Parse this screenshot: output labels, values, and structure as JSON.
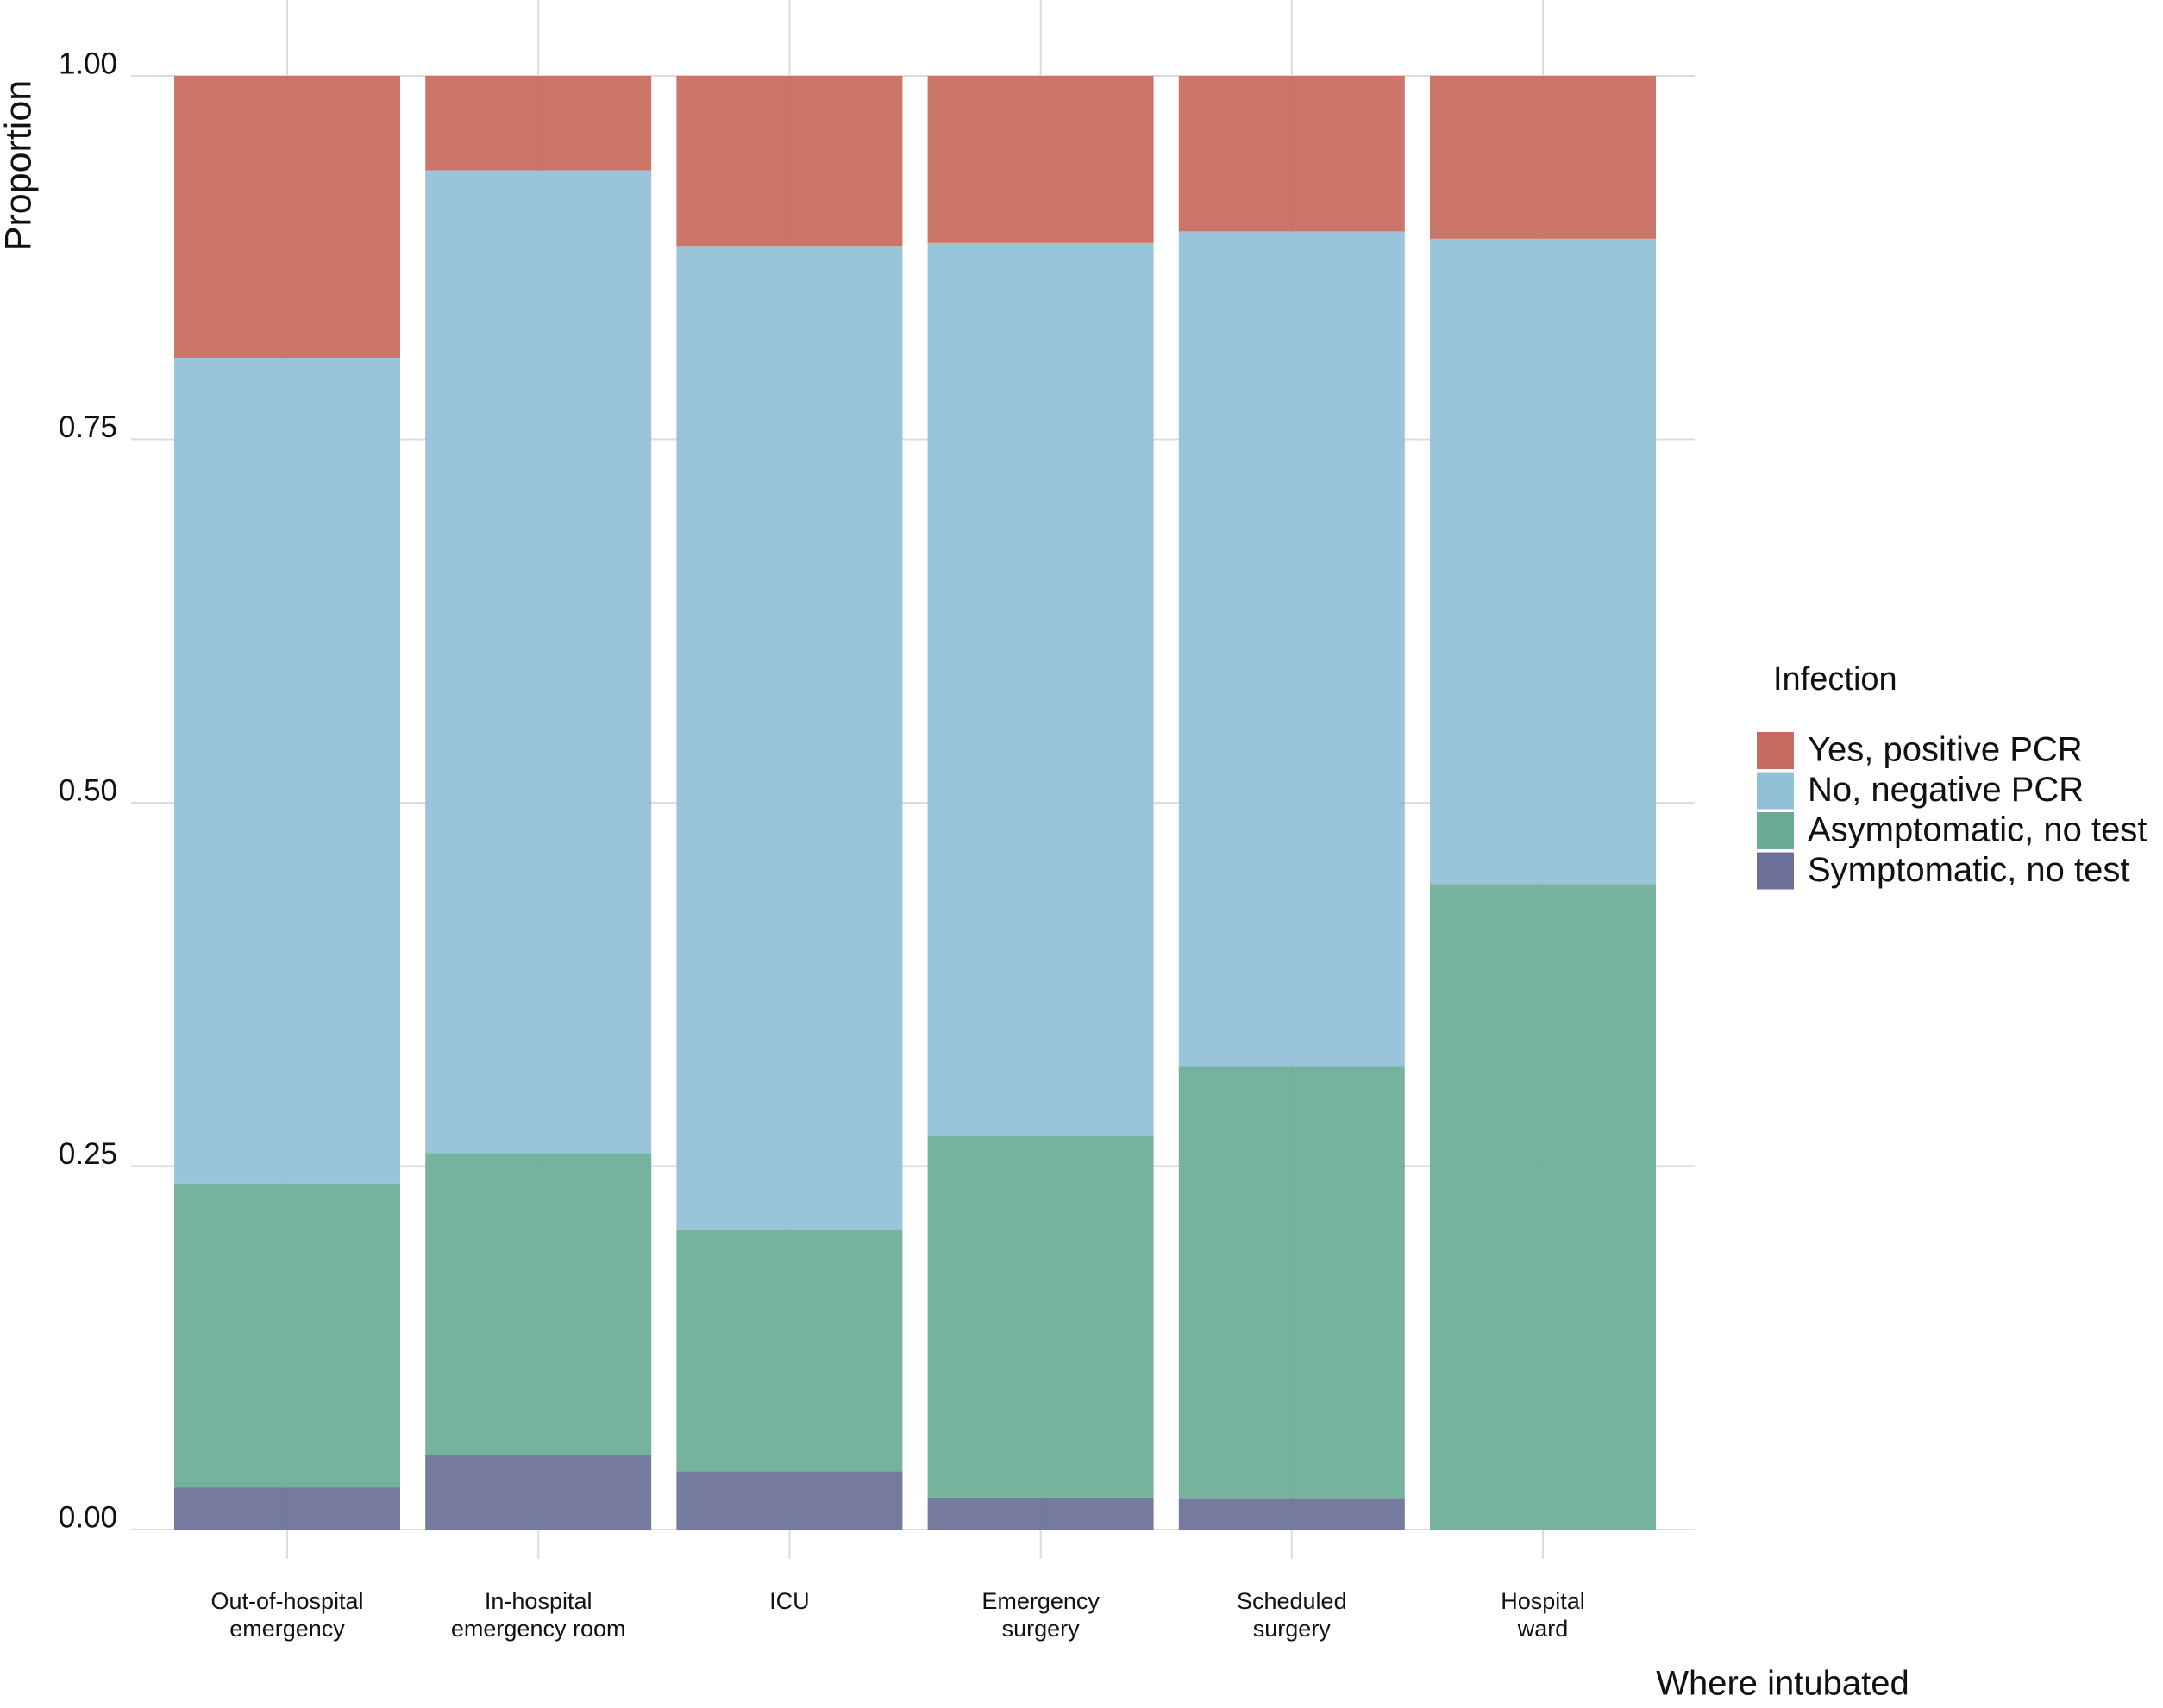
{
  "chart_data": {
    "type": "stacked_bar",
    "xlabel": "Where intubated",
    "ylabel": "Proportion",
    "legend_title": "Infection",
    "categories": [
      [
        "Out-of-hospital",
        "emergency"
      ],
      [
        "In-hospital",
        "emergency room"
      ],
      [
        "ICU"
      ],
      [
        "Emergency",
        "surgery"
      ],
      [
        "Scheduled",
        "surgery"
      ],
      [
        "Hospital",
        "ward"
      ]
    ],
    "series": [
      {
        "name": "Yes, positive PCR",
        "color": "#c86b5e",
        "values": [
          0.194,
          0.065,
          0.117,
          0.115,
          0.107,
          0.112
        ]
      },
      {
        "name": "No, negative PCR",
        "color": "#92c0d6",
        "values": [
          0.568,
          0.676,
          0.677,
          0.614,
          0.574,
          0.444
        ]
      },
      {
        "name": "Asymptomatic, no test",
        "color": "#6aad97",
        "values": [
          0.209,
          0.208,
          0.166,
          0.249,
          0.298,
          0.444
        ]
      },
      {
        "name": "Symptomatic, no test",
        "color": "#6a7098",
        "values": [
          0.029,
          0.051,
          0.04,
          0.022,
          0.021,
          0
        ]
      }
    ],
    "ylim": [
      0,
      1
    ],
    "yticks": [
      {
        "value": 0,
        "label": "0.00"
      },
      {
        "value": 0.25,
        "label": "0.25"
      },
      {
        "value": 0.5,
        "label": "0.50"
      },
      {
        "value": 0.75,
        "label": "0.75"
      },
      {
        "value": 1,
        "label": "1.00"
      }
    ],
    "grid": true,
    "legend_position": "right"
  }
}
